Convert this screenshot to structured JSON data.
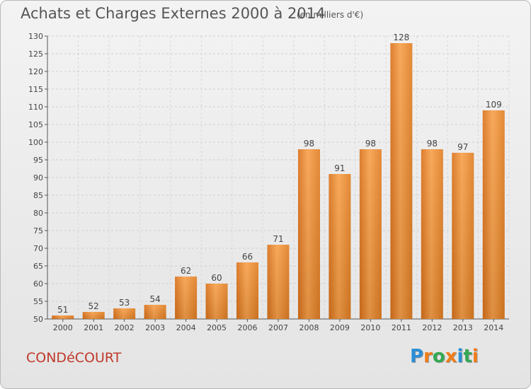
{
  "chart_data": {
    "type": "bar",
    "title": "Achats et Charges Externes 2000 à 2014",
    "subtitle": "(en milliers d'€)",
    "xlabel": "",
    "ylabel": "",
    "categories": [
      "2000",
      "2001",
      "2002",
      "2003",
      "2004",
      "2005",
      "2006",
      "2007",
      "2008",
      "2009",
      "2010",
      "2011",
      "2012",
      "2013",
      "2014"
    ],
    "values": [
      51,
      52,
      53,
      54,
      62,
      60,
      66,
      71,
      98,
      91,
      98,
      128,
      98,
      97,
      109
    ],
    "ylim": [
      50,
      130
    ],
    "yticks": [
      50,
      55,
      60,
      65,
      70,
      75,
      80,
      85,
      90,
      95,
      100,
      105,
      110,
      115,
      120,
      125,
      130
    ],
    "grid": true,
    "legend": "none",
    "bar_color": "#f08a2a"
  },
  "footer": {
    "city": "CONDéCOURT",
    "logo_letters": [
      "P",
      "r",
      "o",
      "x",
      "i",
      "t",
      "i"
    ],
    "logo_colors": [
      "#2a8fd6",
      "#f07d1a",
      "#34a853",
      "#f07d1a",
      "#2a8fd6",
      "#34a853",
      "#f07d1a"
    ]
  }
}
